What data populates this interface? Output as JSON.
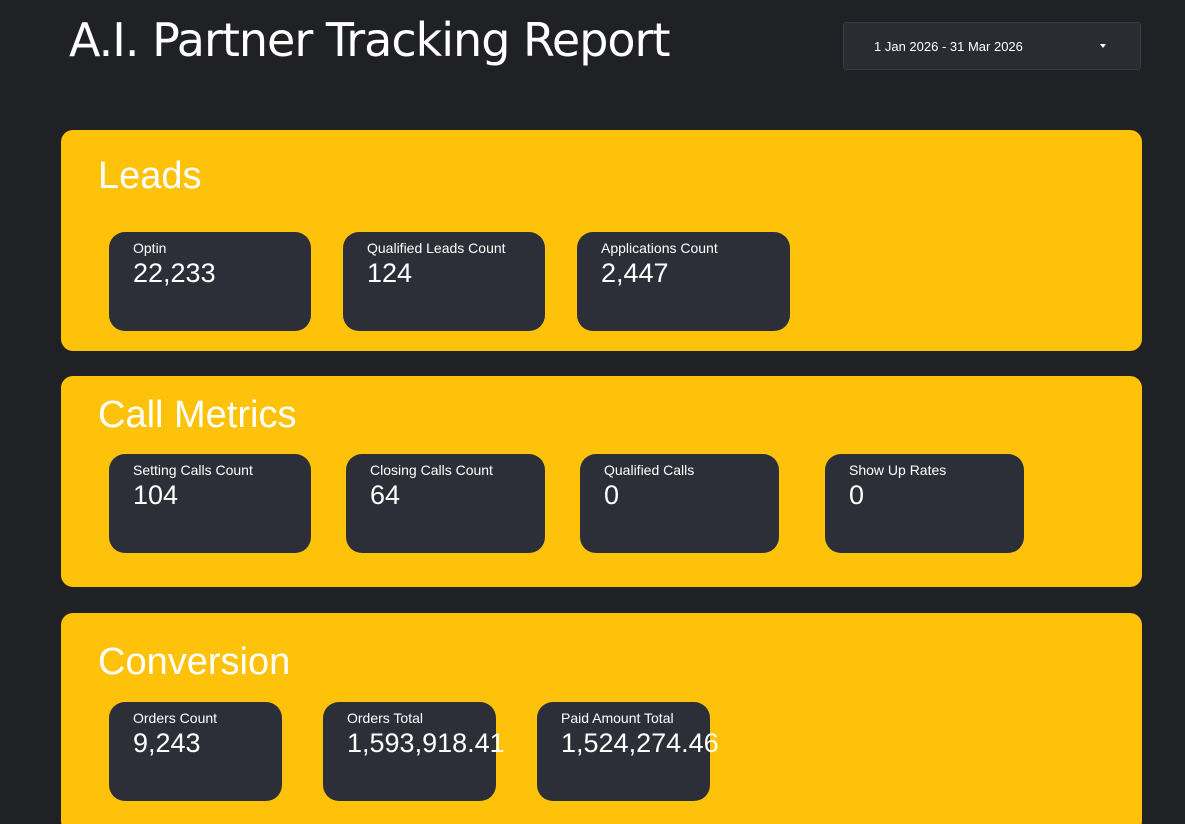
{
  "header": {
    "title": "A.I. Partner Tracking Report",
    "date_range": "1 Jan 2026 - 31 Mar 2026"
  },
  "colors": {
    "background": "#202124",
    "section": "#ffc20a",
    "card": "#2c2f38",
    "text": "#ffffff"
  },
  "sections": {
    "leads": {
      "title": "Leads",
      "cards": [
        {
          "label": "Optin",
          "value": "22,233"
        },
        {
          "label": "Qualified Leads Count",
          "value": "124"
        },
        {
          "label": "Applications Count",
          "value": "2,447"
        }
      ]
    },
    "call_metrics": {
      "title": "Call Metrics",
      "cards": [
        {
          "label": "Setting Calls Count",
          "value": "104"
        },
        {
          "label": "Closing Calls Count",
          "value": "64"
        },
        {
          "label": "Qualified Calls",
          "value": "0"
        },
        {
          "label": "Show Up Rates",
          "value": "0"
        }
      ]
    },
    "conversion": {
      "title": "Conversion",
      "cards": [
        {
          "label": "Orders Count",
          "value": "9,243"
        },
        {
          "label": "Orders Total",
          "value": "1,593,918.41"
        },
        {
          "label": "Paid Amount Total",
          "value": "1,524,274.46"
        }
      ]
    }
  }
}
